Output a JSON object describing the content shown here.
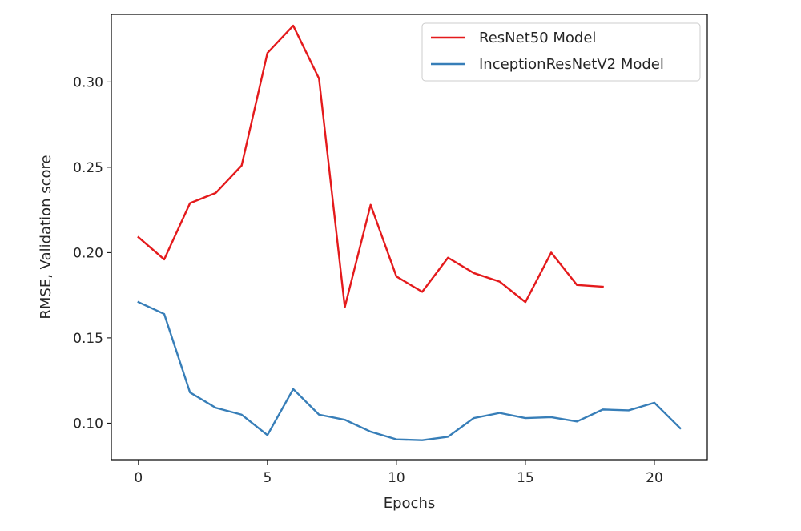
{
  "chart_data": {
    "type": "line",
    "title": "",
    "xlabel": "Epochs",
    "ylabel": "RMSE, Validation score",
    "xlim": [
      -1.05,
      22.05
    ],
    "ylim": [
      0.0786,
      0.3396
    ],
    "xticks": [
      0,
      5,
      10,
      15,
      20
    ],
    "xtick_labels": [
      "0",
      "5",
      "10",
      "15",
      "20"
    ],
    "yticks": [
      0.1,
      0.15,
      0.2,
      0.25,
      0.3
    ],
    "ytick_labels": [
      "0.10",
      "0.15",
      "0.20",
      "0.25",
      "0.30"
    ],
    "grid": false,
    "legend_position": "top-right",
    "series": [
      {
        "name": "ResNet50 Model",
        "color": "#e41a1c",
        "x": [
          0,
          1,
          2,
          3,
          4,
          5,
          6,
          7,
          8,
          9,
          10,
          11,
          12,
          13,
          14,
          15,
          16,
          17,
          18
        ],
        "y": [
          0.209,
          0.196,
          0.229,
          0.235,
          0.251,
          0.317,
          0.333,
          0.302,
          0.168,
          0.228,
          0.186,
          0.177,
          0.197,
          0.188,
          0.183,
          0.171,
          0.2,
          0.181,
          0.18
        ]
      },
      {
        "name": "InceptionResNetV2 Model",
        "color": "#377eb8",
        "x": [
          0,
          1,
          2,
          3,
          4,
          5,
          6,
          7,
          8,
          9,
          10,
          11,
          12,
          13,
          14,
          15,
          16,
          17,
          18,
          19,
          20,
          21
        ],
        "y": [
          0.171,
          0.164,
          0.118,
          0.109,
          0.105,
          0.093,
          0.12,
          0.105,
          0.102,
          0.095,
          0.0905,
          0.09,
          0.092,
          0.103,
          0.106,
          0.103,
          0.1035,
          0.101,
          0.108,
          0.1075,
          0.112,
          0.097
        ]
      }
    ]
  }
}
